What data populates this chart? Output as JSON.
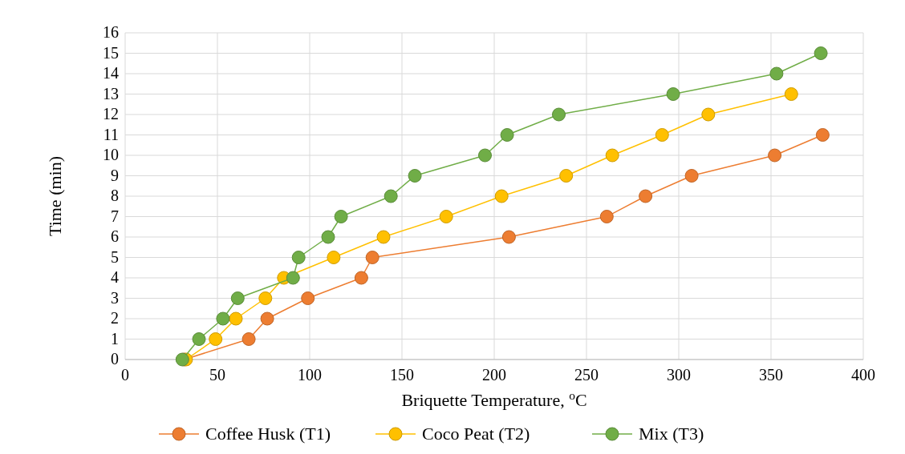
{
  "chart_data": {
    "type": "line",
    "xlabel": "Briquette Temperature, $^{o}$C",
    "ylabel": "Time (min)",
    "xlim": [
      0,
      400
    ],
    "xticks": [
      0,
      50,
      100,
      150,
      200,
      250,
      300,
      350,
      400
    ],
    "ylim": [
      0,
      16
    ],
    "yticks": [
      0,
      1,
      2,
      3,
      4,
      5,
      6,
      7,
      8,
      9,
      10,
      11,
      12,
      13,
      14,
      15,
      16
    ],
    "grid": true,
    "legend": "bottom",
    "marker": "circle",
    "line_style": "solid",
    "series": [
      {
        "name": "Coffee Husk (T1)",
        "color": "#ed7d31",
        "x": [
          32,
          67,
          77,
          99,
          128,
          134,
          208,
          261,
          282,
          307,
          352,
          378
        ],
        "values": [
          0,
          1,
          2,
          3,
          4,
          5,
          6,
          7,
          8,
          9,
          10,
          11
        ]
      },
      {
        "name": "Coco Peat (T2)",
        "color": "#ffc000",
        "x": [
          33,
          49,
          60,
          76,
          86,
          113,
          140,
          174,
          204,
          239,
          264,
          291,
          316,
          361
        ],
        "values": [
          0,
          1,
          2,
          3,
          4,
          5,
          6,
          7,
          8,
          9,
          10,
          11,
          12,
          13
        ]
      },
      {
        "name": "Mix (T3)",
        "color": "#70ad47",
        "x": [
          31,
          40,
          53,
          61,
          91,
          94,
          110,
          117,
          144,
          157,
          195,
          207,
          235,
          297,
          353,
          377
        ],
        "values": [
          0,
          1,
          2,
          3,
          4,
          5,
          6,
          7,
          8,
          9,
          10,
          11,
          12,
          13,
          14,
          15
        ]
      }
    ]
  }
}
